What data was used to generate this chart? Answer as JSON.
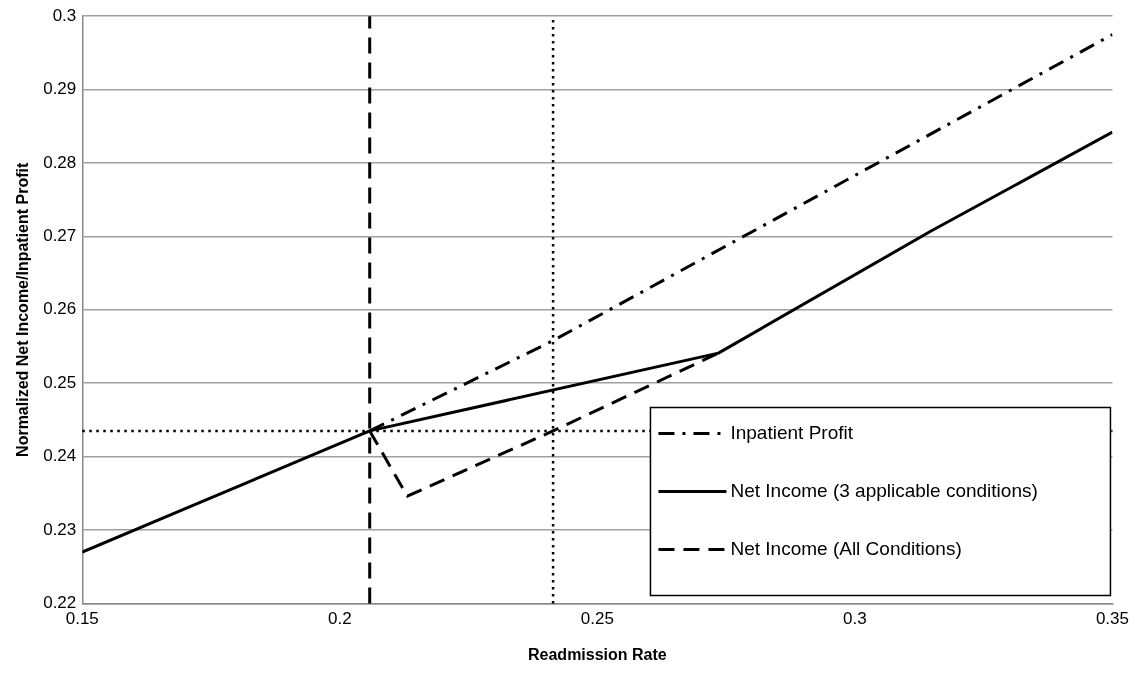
{
  "chart_data": {
    "type": "line",
    "xlabel": "Readmission Rate",
    "ylabel": "Normalized Net Income/Inpatient Profit",
    "xlim": [
      0.15,
      0.35
    ],
    "xticks": [
      0.15,
      0.2,
      0.25,
      0.3,
      0.35
    ],
    "ylim": [
      0.22,
      0.3
    ],
    "yticks": [
      0.22,
      0.23,
      0.24,
      0.25,
      0.26,
      0.27,
      0.28,
      0.29,
      0.3
    ],
    "grid": "y",
    "legend": "bottom right",
    "marker": "none",
    "series": [
      {
        "name": "Inpatient Profit",
        "color": "#000000",
        "line_style": "dashdot",
        "x": [
          0.2058,
          0.2414,
          0.35
        ],
        "values": [
          0.2435,
          0.2558,
          0.2975
        ]
      },
      {
        "name": "Net Income (3 applicable conditions)",
        "color": "#000000",
        "line_style": "solid",
        "x": [
          0.15,
          0.2058,
          0.2735,
          0.3147,
          0.35
        ],
        "values": [
          0.227,
          0.2435,
          0.2541,
          0.2707,
          0.2842
        ]
      },
      {
        "name": "Net Income (All Conditions)",
        "color": "#000000",
        "line_style": "dashed",
        "x": [
          0.2058,
          0.2131,
          0.2414,
          0.2735
        ],
        "values": [
          0.2435,
          0.2346,
          0.2435,
          0.2541
        ]
      }
    ],
    "ref_lines": [
      {
        "axis": "x",
        "value": 0.2058,
        "color": "#000000",
        "line_style": "dashed"
      },
      {
        "axis": "x",
        "value": 0.2414,
        "color": "#000000",
        "line_style": "dotted"
      },
      {
        "axis": "y",
        "value": 0.2435,
        "color": "#000000",
        "line_style": "dotted"
      }
    ]
  }
}
